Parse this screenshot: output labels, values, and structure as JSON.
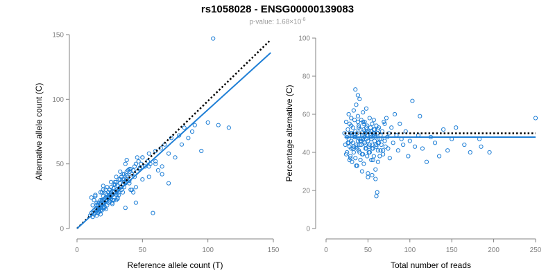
{
  "title": "rs1058028 - ENSG00000139083",
  "subtitle": {
    "prefix": "p-value: 1.68×10",
    "exponent": "-8"
  },
  "colors": {
    "points": "#1f7fd6",
    "fit_line": "#1f7fd6",
    "reference_line": "#000000",
    "axis": "#808080"
  },
  "chart_data": [
    {
      "type": "scatter",
      "xlabel": "Reference allele count (T)",
      "ylabel": "Alternative allele count (C)",
      "xlim": [
        0,
        150
      ],
      "ylim": [
        0,
        150
      ],
      "xticks": [
        "0",
        "50",
        "100",
        "150"
      ],
      "yticks": [
        "0",
        "50",
        "100",
        "150"
      ],
      "grid": false,
      "lines": [
        {
          "style": "dotted",
          "color": "#000000",
          "x": [
            0,
            148
          ],
          "y": [
            0,
            146
          ]
        },
        {
          "style": "solid",
          "color": "#1f7fd6",
          "x": [
            0,
            148
          ],
          "y": [
            0,
            136
          ]
        }
      ],
      "points": {
        "x": [
          10,
          11,
          12,
          12,
          13,
          13,
          14,
          14,
          15,
          15,
          15,
          16,
          16,
          16,
          17,
          17,
          17,
          18,
          18,
          18,
          18,
          19,
          19,
          19,
          20,
          20,
          20,
          20,
          21,
          21,
          21,
          22,
          22,
          22,
          22,
          23,
          23,
          23,
          24,
          24,
          24,
          25,
          25,
          25,
          26,
          26,
          26,
          27,
          27,
          27,
          28,
          28,
          29,
          29,
          30,
          30,
          30,
          31,
          31,
          32,
          32,
          33,
          33,
          34,
          34,
          35,
          35,
          36,
          36,
          37,
          38,
          38,
          39,
          40,
          40,
          41,
          42,
          43,
          44,
          45,
          46,
          47,
          48,
          49,
          50,
          52,
          54,
          55,
          56,
          58,
          60,
          62,
          64,
          65,
          67,
          70,
          72,
          75,
          78,
          80,
          82,
          85,
          88,
          90,
          95,
          100,
          104,
          108,
          116,
          12,
          14,
          16,
          18,
          20,
          22,
          24,
          26,
          28,
          30,
          32,
          34,
          36,
          38,
          40,
          42,
          44,
          46,
          48,
          50,
          55,
          60,
          65,
          70,
          13,
          15,
          17,
          19,
          21,
          23,
          25,
          27,
          29,
          31,
          33,
          35,
          37,
          39,
          41,
          43,
          45,
          11,
          13,
          15,
          17,
          19,
          21,
          23,
          25,
          27,
          29,
          31,
          33,
          35,
          37,
          14,
          16,
          18,
          20,
          22,
          24,
          26,
          28,
          30,
          32,
          34,
          36,
          38,
          40,
          45,
          50,
          55,
          60
        ],
        "y": [
          10,
          12,
          13,
          9,
          14,
          11,
          15,
          12,
          16,
          14,
          10,
          18,
          15,
          12,
          17,
          20,
          13,
          19,
          16,
          22,
          11,
          21,
          18,
          14,
          22,
          19,
          25,
          16,
          23,
          20,
          17,
          24,
          21,
          27,
          15,
          22,
          26,
          18,
          25,
          28,
          20,
          24,
          30,
          21,
          27,
          23,
          32,
          26,
          29,
          22,
          28,
          31,
          27,
          34,
          30,
          26,
          36,
          29,
          33,
          31,
          28,
          35,
          32,
          30,
          40,
          34,
          38,
          36,
          42,
          35,
          41,
          38,
          40,
          44,
          37,
          46,
          42,
          45,
          48,
          50,
          44,
          52,
          47,
          50,
          55,
          48,
          52,
          58,
          50,
          12,
          60,
          45,
          62,
          48,
          65,
          58,
          70,
          55,
          72,
          65,
          78,
          70,
          75,
          80,
          60,
          82,
          147,
          80,
          78,
          18,
          25,
          20,
          28,
          33,
          30,
          24,
          36,
          22,
          40,
          26,
          32,
          38,
          44,
          35,
          30,
          40,
          55,
          46,
          38,
          48,
          52,
          42,
          35,
          22,
          18,
          14,
          28,
          16,
          32,
          26,
          20,
          36,
          24,
          44,
          42,
          50,
          45,
          30,
          28,
          32,
          24,
          14,
          20,
          15,
          22,
          17,
          24,
          30,
          19,
          34,
          23,
          38,
          28,
          16,
          26,
          18,
          14,
          30,
          24,
          20,
          28,
          34,
          22,
          38,
          40,
          32,
          53,
          46,
          20,
          55,
          40,
          50
        ]
      }
    },
    {
      "type": "scatter",
      "xlabel": "Total number of reads",
      "ylabel": "Percentage alternative (C)",
      "xlim": [
        0,
        250
      ],
      "ylim": [
        0,
        100
      ],
      "xticks": [
        "0",
        "50",
        "100",
        "150",
        "200",
        "250"
      ],
      "yticks": [
        "0",
        "20",
        "40",
        "60",
        "80",
        "100"
      ],
      "grid": false,
      "lines": [
        {
          "style": "dotted",
          "color": "#000000",
          "x": [
            22,
            250
          ],
          "y": [
            50,
            50
          ]
        },
        {
          "style": "solid",
          "color": "#1f7fd6",
          "x": [
            22,
            250
          ],
          "y": [
            48,
            48
          ]
        }
      ],
      "points": {
        "x": [
          22,
          23,
          24,
          25,
          25,
          26,
          27,
          27,
          28,
          28,
          29,
          29,
          30,
          30,
          30,
          31,
          31,
          32,
          32,
          33,
          33,
          34,
          34,
          35,
          35,
          36,
          36,
          37,
          37,
          38,
          38,
          39,
          39,
          40,
          40,
          41,
          41,
          42,
          42,
          43,
          43,
          44,
          44,
          45,
          45,
          46,
          46,
          47,
          47,
          48,
          48,
          49,
          49,
          50,
          50,
          51,
          51,
          52,
          52,
          53,
          53,
          54,
          54,
          55,
          55,
          56,
          56,
          57,
          57,
          58,
          58,
          59,
          59,
          60,
          60,
          61,
          62,
          62,
          63,
          64,
          65,
          66,
          67,
          68,
          69,
          70,
          71,
          72,
          73,
          74,
          75,
          76,
          78,
          80,
          82,
          84,
          86,
          88,
          90,
          92,
          95,
          98,
          100,
          103,
          106,
          110,
          112,
          115,
          120,
          125,
          130,
          135,
          140,
          145,
          150,
          155,
          165,
          172,
          183,
          185,
          195,
          250,
          24,
          26,
          28,
          30,
          32,
          34,
          36,
          38,
          40,
          42,
          44,
          46,
          48,
          50,
          52,
          54,
          56,
          58,
          60,
          62,
          64,
          66,
          68,
          70,
          27,
          29,
          31,
          33,
          35,
          37,
          39,
          41,
          43,
          45,
          47,
          49,
          51,
          53,
          55,
          57,
          59,
          61,
          63,
          65,
          35,
          40,
          45,
          50,
          55,
          60,
          38,
          42,
          48,
          52,
          58,
          62,
          36,
          44,
          46,
          54
        ],
        "y": [
          50,
          44,
          56,
          48,
          40,
          52,
          47,
          60,
          43,
          55,
          38,
          50,
          46,
          58,
          42,
          49,
          35,
          53,
          45,
          62,
          40,
          48,
          57,
          37,
          51,
          44,
          65,
          33,
          50,
          46,
          59,
          41,
          54,
          47,
          68,
          36,
          52,
          44,
          57,
          39,
          49,
          47,
          61,
          34,
          52,
          45,
          56,
          42,
          50,
          47,
          63,
          38,
          54,
          46,
          29,
          51,
          43,
          58,
          40,
          49,
          53,
          36,
          47,
          55,
          44,
          50,
          42,
          57,
          38,
          52,
          46,
          31,
          48,
          54,
          43,
          50,
          45,
          41,
          53,
          47,
          49,
          44,
          51,
          39,
          56,
          46,
          43,
          58,
          48,
          42,
          50,
          37,
          53,
          45,
          60,
          49,
          41,
          55,
          47,
          44,
          51,
          38,
          46,
          67,
          43,
          49,
          59,
          42,
          35,
          48,
          45,
          38,
          52,
          41,
          47,
          53,
          44,
          40,
          47,
          43,
          40,
          58,
          39,
          45,
          36,
          54,
          42,
          48,
          33,
          56,
          44,
          46,
          39,
          51,
          42,
          27,
          40,
          47,
          36,
          49,
          44,
          52,
          38,
          47,
          41,
          55,
          45,
          37,
          50,
          43,
          48,
          42,
          53,
          46,
          30,
          49,
          44,
          51,
          40,
          48,
          28,
          52,
          26,
          19,
          45,
          41,
          73,
          40,
          55,
          49,
          42,
          17,
          70,
          47,
          53,
          44,
          50,
          35,
          43,
          56,
          48,
          51
        ]
      }
    }
  ]
}
